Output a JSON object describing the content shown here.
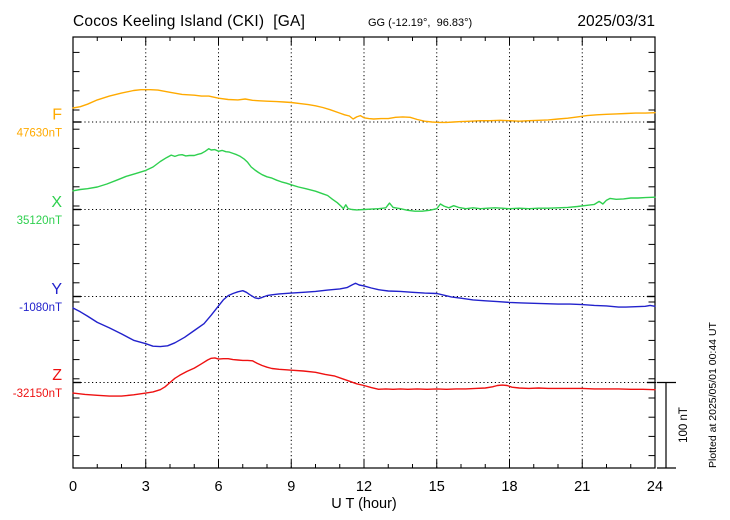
{
  "header": {
    "station_title": "Cocos Keeling Island (CKI)  [GA]",
    "coords": "GG (-12.19°,  96.83°)",
    "date": "2025/03/31"
  },
  "footer_note": "Plotted at 2025/05/01 00:44 UT",
  "scale_bar": {
    "label": "100 nT",
    "nT": 100
  },
  "colors": {
    "F": "#ffaa00",
    "X": "#2fd04f",
    "Y": "#2222cc",
    "Z": "#ee1111",
    "axis": "#000000"
  },
  "chart_data": {
    "type": "line",
    "title": "Cocos Keeling Island (CKI) magnetogram 2025/03/31",
    "xlabel": "U T (hour)",
    "x_range": [
      0,
      24
    ],
    "x_major_ticks": [
      0,
      3,
      6,
      9,
      12,
      15,
      18,
      21,
      24
    ],
    "x_minor_step_hours": 1,
    "grid": "dotted vertical at 3h intervals, dotted horizontal baseline per component",
    "legend_position": "left margin, one colored label per stacked trace",
    "y_scale_note": "each trace plotted as offset in nT from its baseline value; 100 nT scale bar at right",
    "series": [
      {
        "name": "F",
        "baseline_label": "47630nT",
        "color_key": "F",
        "points": [
          [
            0,
            16.5
          ],
          [
            0.3,
            18
          ],
          [
            0.6,
            21
          ],
          [
            1,
            26
          ],
          [
            1.5,
            30.5
          ],
          [
            2,
            34
          ],
          [
            2.5,
            37
          ],
          [
            2.8,
            38
          ],
          [
            3.2,
            38
          ],
          [
            3.5,
            37.5
          ],
          [
            4,
            35
          ],
          [
            4.5,
            32.5
          ],
          [
            5,
            31.5
          ],
          [
            5.3,
            30.5
          ],
          [
            5.6,
            30.5
          ],
          [
            6,
            28
          ],
          [
            6.4,
            26.5
          ],
          [
            6.8,
            26
          ],
          [
            7.1,
            27
          ],
          [
            7.4,
            25.5
          ],
          [
            7.7,
            25
          ],
          [
            8,
            24.5
          ],
          [
            8.4,
            24
          ],
          [
            8.7,
            23.5
          ],
          [
            9,
            23
          ],
          [
            9.4,
            21.5
          ],
          [
            9.7,
            20.5
          ],
          [
            10,
            19
          ],
          [
            10.3,
            17
          ],
          [
            10.6,
            14.5
          ],
          [
            11,
            10.5
          ],
          [
            11.2,
            8.5
          ],
          [
            11.4,
            7
          ],
          [
            11.55,
            3.5
          ],
          [
            11.7,
            6
          ],
          [
            11.85,
            7.5
          ],
          [
            12,
            5
          ],
          [
            12.2,
            4
          ],
          [
            12.4,
            3.5
          ],
          [
            12.7,
            4
          ],
          [
            13,
            4
          ],
          [
            13.3,
            5.5
          ],
          [
            13.6,
            6
          ],
          [
            13.9,
            5.5
          ],
          [
            14.2,
            3
          ],
          [
            14.5,
            1
          ],
          [
            14.8,
            0
          ],
          [
            15.1,
            -0.5
          ],
          [
            15.4,
            -0.5
          ],
          [
            15.7,
            0
          ],
          [
            16,
            0.5
          ],
          [
            16.4,
            1
          ],
          [
            16.8,
            1.5
          ],
          [
            17.2,
            1.5
          ],
          [
            17.6,
            2
          ],
          [
            18,
            1.5
          ],
          [
            18.4,
            1
          ],
          [
            18.8,
            1.5
          ],
          [
            19.2,
            2
          ],
          [
            19.6,
            2.5
          ],
          [
            20,
            3.5
          ],
          [
            20.4,
            4.5
          ],
          [
            20.8,
            6
          ],
          [
            21.2,
            7.5
          ],
          [
            21.6,
            8.5
          ],
          [
            22,
            9
          ],
          [
            22.4,
            9.5
          ],
          [
            22.8,
            10
          ],
          [
            23.2,
            10.5
          ],
          [
            23.6,
            10.5
          ],
          [
            24,
            11
          ]
        ]
      },
      {
        "name": "X",
        "baseline_label": "35120nT",
        "color_key": "X",
        "points": [
          [
            0,
            22
          ],
          [
            0.3,
            23.5
          ],
          [
            0.6,
            24.5
          ],
          [
            1,
            26.5
          ],
          [
            1.4,
            30
          ],
          [
            1.8,
            34.5
          ],
          [
            2.2,
            39
          ],
          [
            2.6,
            42.5
          ],
          [
            3,
            46
          ],
          [
            3.3,
            50
          ],
          [
            3.6,
            56.5
          ],
          [
            3.85,
            61
          ],
          [
            4.05,
            64
          ],
          [
            4.2,
            62.5
          ],
          [
            4.35,
            64
          ],
          [
            4.5,
            64.5
          ],
          [
            4.65,
            63
          ],
          [
            4.8,
            63.5
          ],
          [
            5,
            63.5
          ],
          [
            5.15,
            65
          ],
          [
            5.3,
            66
          ],
          [
            5.45,
            68.5
          ],
          [
            5.6,
            71.5
          ],
          [
            5.7,
            70
          ],
          [
            5.85,
            70.5
          ],
          [
            6,
            68.5
          ],
          [
            6.15,
            69.5
          ],
          [
            6.3,
            68
          ],
          [
            6.45,
            67.5
          ],
          [
            6.6,
            66
          ],
          [
            6.75,
            64.5
          ],
          [
            6.9,
            62.5
          ],
          [
            7.05,
            59.5
          ],
          [
            7.2,
            55.5
          ],
          [
            7.35,
            50
          ],
          [
            7.5,
            46.5
          ],
          [
            7.65,
            43.5
          ],
          [
            7.8,
            41
          ],
          [
            8,
            38.5
          ],
          [
            8.2,
            37
          ],
          [
            8.4,
            34.5
          ],
          [
            8.6,
            32.5
          ],
          [
            8.8,
            31
          ],
          [
            9,
            29
          ],
          [
            9.3,
            26.5
          ],
          [
            9.6,
            24.5
          ],
          [
            10,
            21.5
          ],
          [
            10.3,
            18.5
          ],
          [
            10.5,
            16.5
          ],
          [
            10.7,
            12
          ],
          [
            10.9,
            8
          ],
          [
            11.05,
            4
          ],
          [
            11.15,
            1
          ],
          [
            11.25,
            5.5
          ],
          [
            11.35,
            1
          ],
          [
            11.5,
            0
          ],
          [
            11.7,
            -0.5
          ],
          [
            12,
            0
          ],
          [
            12.3,
            0.5
          ],
          [
            12.6,
            1
          ],
          [
            12.9,
            2
          ],
          [
            13.05,
            7.5
          ],
          [
            13.2,
            2.5
          ],
          [
            13.5,
            1
          ],
          [
            13.8,
            -1
          ],
          [
            14.1,
            -2
          ],
          [
            14.4,
            -2
          ],
          [
            14.7,
            -1
          ],
          [
            15,
            1
          ],
          [
            15.15,
            6.5
          ],
          [
            15.3,
            4
          ],
          [
            15.5,
            2
          ],
          [
            15.7,
            4.5
          ],
          [
            15.9,
            2.5
          ],
          [
            16.2,
            1
          ],
          [
            16.5,
            2
          ],
          [
            16.8,
            1
          ],
          [
            17.1,
            1.5
          ],
          [
            17.4,
            2
          ],
          [
            17.7,
            1.5
          ],
          [
            18,
            1
          ],
          [
            18.4,
            1.5
          ],
          [
            18.8,
            1
          ],
          [
            19.2,
            1.5
          ],
          [
            19.6,
            1.5
          ],
          [
            20,
            2
          ],
          [
            20.4,
            2.5
          ],
          [
            20.8,
            3.5
          ],
          [
            21.2,
            5
          ],
          [
            21.5,
            6
          ],
          [
            21.7,
            9.5
          ],
          [
            21.85,
            6.5
          ],
          [
            22,
            11
          ],
          [
            22.15,
            13
          ],
          [
            22.4,
            12
          ],
          [
            22.7,
            12.5
          ],
          [
            23,
            13.5
          ],
          [
            23.3,
            13.5
          ],
          [
            23.6,
            14
          ],
          [
            24,
            14.5
          ]
        ]
      },
      {
        "name": "Y",
        "baseline_label": "-1080nT",
        "color_key": "Y",
        "points": [
          [
            0,
            -13.5
          ],
          [
            0.3,
            -18
          ],
          [
            0.6,
            -23
          ],
          [
            1,
            -30.5
          ],
          [
            1.5,
            -37
          ],
          [
            2,
            -44
          ],
          [
            2.5,
            -51.5
          ],
          [
            3,
            -55.5
          ],
          [
            3.3,
            -58.5
          ],
          [
            3.6,
            -59
          ],
          [
            3.9,
            -58
          ],
          [
            4.2,
            -54.5
          ],
          [
            4.6,
            -48
          ],
          [
            5,
            -40
          ],
          [
            5.4,
            -32
          ],
          [
            5.7,
            -22
          ],
          [
            6,
            -11
          ],
          [
            6.2,
            -4
          ],
          [
            6.4,
            1
          ],
          [
            6.6,
            3.5
          ],
          [
            6.8,
            5.5
          ],
          [
            7,
            6.8
          ],
          [
            7.15,
            5
          ],
          [
            7.3,
            2
          ],
          [
            7.5,
            -1.5
          ],
          [
            7.65,
            -2.5
          ],
          [
            7.8,
            -1
          ],
          [
            8,
            1
          ],
          [
            8.2,
            2
          ],
          [
            8.5,
            3
          ],
          [
            9,
            4
          ],
          [
            9.5,
            5
          ],
          [
            10,
            6
          ],
          [
            10.5,
            7.5
          ],
          [
            11,
            9
          ],
          [
            11.3,
            10.5
          ],
          [
            11.5,
            13.5
          ],
          [
            11.65,
            15.5
          ],
          [
            11.8,
            13.5
          ],
          [
            12,
            12.5
          ],
          [
            12.3,
            10
          ],
          [
            12.6,
            8
          ],
          [
            13,
            6.5
          ],
          [
            13.5,
            6
          ],
          [
            14,
            5
          ],
          [
            14.5,
            4
          ],
          [
            15,
            3.5
          ],
          [
            15.3,
            1.5
          ],
          [
            15.6,
            -0.5
          ],
          [
            16,
            -2
          ],
          [
            16.5,
            -4
          ],
          [
            17,
            -5
          ],
          [
            17.5,
            -6
          ],
          [
            18,
            -7
          ],
          [
            18.5,
            -7.5
          ],
          [
            19,
            -8
          ],
          [
            19.5,
            -8.5
          ],
          [
            20,
            -9
          ],
          [
            20.5,
            -9
          ],
          [
            21,
            -9.5
          ],
          [
            21.5,
            -10.5
          ],
          [
            22,
            -11
          ],
          [
            22.5,
            -12.5
          ],
          [
            22.8,
            -12.5
          ],
          [
            23.2,
            -12
          ],
          [
            23.6,
            -11.5
          ],
          [
            23.8,
            -10.5
          ],
          [
            24,
            -11.5
          ]
        ]
      },
      {
        "name": "Z",
        "baseline_label": "-32150nT",
        "color_key": "Z",
        "points": [
          [
            0,
            -12.5
          ],
          [
            0.5,
            -14
          ],
          [
            1,
            -15
          ],
          [
            1.5,
            -16
          ],
          [
            2,
            -16
          ],
          [
            2.5,
            -14.5
          ],
          [
            3,
            -12.5
          ],
          [
            3.3,
            -11
          ],
          [
            3.6,
            -8.5
          ],
          [
            3.8,
            -5
          ],
          [
            4,
            0
          ],
          [
            4.2,
            5
          ],
          [
            4.4,
            8.5
          ],
          [
            4.7,
            13
          ],
          [
            5,
            17
          ],
          [
            5.3,
            22
          ],
          [
            5.55,
            26.5
          ],
          [
            5.7,
            28.5
          ],
          [
            5.85,
            29
          ],
          [
            6,
            27.5
          ],
          [
            6.2,
            28
          ],
          [
            6.4,
            28
          ],
          [
            6.6,
            27
          ],
          [
            6.8,
            26.5
          ],
          [
            7,
            26
          ],
          [
            7.2,
            26
          ],
          [
            7.4,
            25.5
          ],
          [
            7.6,
            22.5
          ],
          [
            7.8,
            20
          ],
          [
            8,
            18
          ],
          [
            8.2,
            16.5
          ],
          [
            8.5,
            15.5
          ],
          [
            8.8,
            15
          ],
          [
            9,
            14.5
          ],
          [
            9.5,
            13.5
          ],
          [
            10,
            12
          ],
          [
            10.4,
            9.5
          ],
          [
            10.8,
            7.5
          ],
          [
            11.1,
            4.5
          ],
          [
            11.4,
            1.5
          ],
          [
            11.7,
            -1.5
          ],
          [
            12,
            -3.5
          ],
          [
            12.3,
            -6
          ],
          [
            12.6,
            -8
          ],
          [
            12.9,
            -7.5
          ],
          [
            13.2,
            -8
          ],
          [
            13.5,
            -7.5
          ],
          [
            13.8,
            -8
          ],
          [
            14.2,
            -7.5
          ],
          [
            14.6,
            -8
          ],
          [
            15,
            -7.5
          ],
          [
            15.4,
            -8
          ],
          [
            15.8,
            -7.5
          ],
          [
            16.2,
            -7.5
          ],
          [
            16.6,
            -7
          ],
          [
            17,
            -6.5
          ],
          [
            17.3,
            -5
          ],
          [
            17.5,
            -3.5
          ],
          [
            17.7,
            -3
          ],
          [
            17.9,
            -3.5
          ],
          [
            18.1,
            -5.5
          ],
          [
            18.4,
            -6.5
          ],
          [
            18.8,
            -7
          ],
          [
            19.2,
            -6.5
          ],
          [
            19.6,
            -7
          ],
          [
            20,
            -7
          ],
          [
            20.5,
            -7
          ],
          [
            21,
            -7
          ],
          [
            21.5,
            -7.5
          ],
          [
            22,
            -7.5
          ],
          [
            22.5,
            -7.5
          ],
          [
            23,
            -8
          ],
          [
            23.5,
            -8
          ],
          [
            24,
            -8.5
          ]
        ]
      }
    ]
  }
}
